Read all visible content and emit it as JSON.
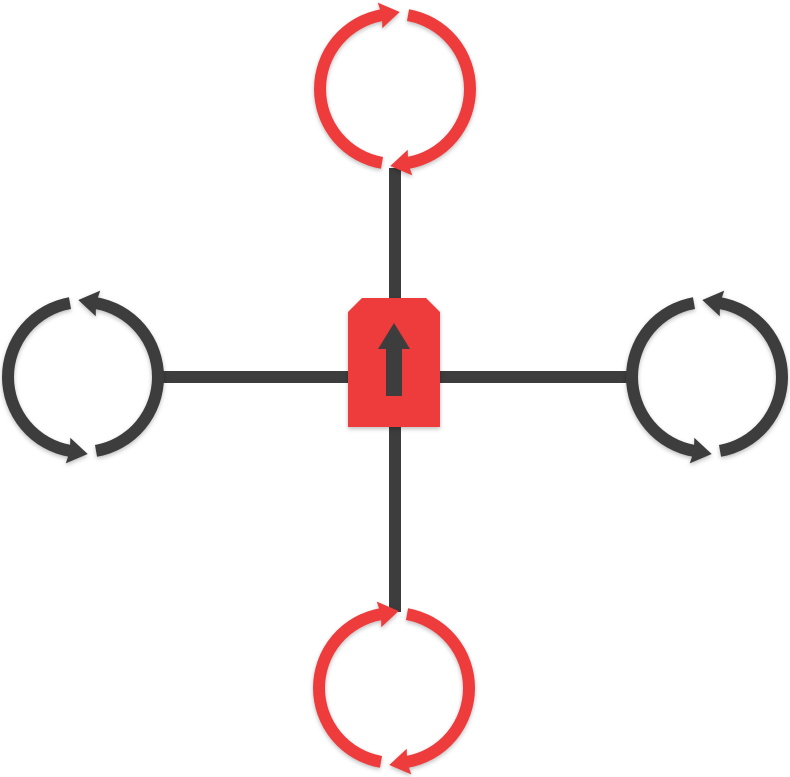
{
  "diagram": {
    "type": "quadcopter-rotor-layout",
    "colors": {
      "dark": "#3d3d3d",
      "red": "#ee3b3b",
      "background": "#ffffff"
    },
    "body": {
      "color": "red",
      "icon": "up-arrow-icon"
    },
    "rotors": [
      {
        "id": "top",
        "color": "red",
        "rotation": "clockwise"
      },
      {
        "id": "right",
        "color": "dark",
        "rotation": "counterclockwise"
      },
      {
        "id": "bottom",
        "color": "red",
        "rotation": "clockwise"
      },
      {
        "id": "left",
        "color": "dark",
        "rotation": "counterclockwise"
      }
    ]
  }
}
